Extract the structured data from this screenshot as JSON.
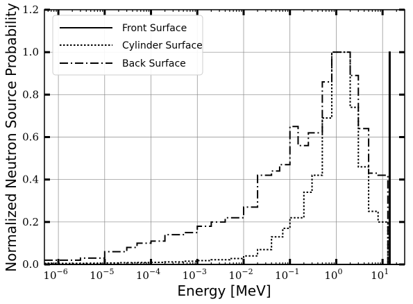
{
  "chart_data": {
    "type": "line",
    "step": true,
    "xscale": "log",
    "title": "",
    "xlabel": "Energy [MeV]",
    "ylabel": "Normalized Neutron Source Probability",
    "xlim": [
      5e-07,
      30
    ],
    "ylim": [
      0,
      1.2
    ],
    "xticks": [
      {
        "value": 1e-06,
        "base": "10",
        "exp": "−6"
      },
      {
        "value": 1e-05,
        "base": "10",
        "exp": "−5"
      },
      {
        "value": 0.0001,
        "base": "10",
        "exp": "−4"
      },
      {
        "value": 0.001,
        "base": "10",
        "exp": "−3"
      },
      {
        "value": 0.01,
        "base": "10",
        "exp": "−2"
      },
      {
        "value": 0.1,
        "base": "10",
        "exp": "−1"
      },
      {
        "value": 1,
        "base": "10",
        "exp": "0"
      },
      {
        "value": 10,
        "base": "10",
        "exp": "1"
      }
    ],
    "yticks": [
      {
        "value": 0.0,
        "label": "0.0"
      },
      {
        "value": 0.2,
        "label": "0.2"
      },
      {
        "value": 0.4,
        "label": "0.4"
      },
      {
        "value": 0.6,
        "label": "0.6"
      },
      {
        "value": 0.8,
        "label": "0.8"
      },
      {
        "value": 1.0,
        "label": "1.0"
      },
      {
        "value": 1.2,
        "label": "1.2"
      }
    ],
    "grid": true,
    "legend_position": "top-left",
    "series": [
      {
        "name": "Front Surface",
        "style": "solid",
        "x": [
          5e-07,
          14,
          14,
          14.5,
          14.5,
          30
        ],
        "y": [
          0,
          0,
          1.0,
          1.0,
          0,
          0
        ]
      },
      {
        "name": "Cylinder Surface",
        "style": "dotted",
        "x": [
          5e-07,
          1e-06,
          2e-06,
          4e-06,
          1e-05,
          2e-05,
          5e-05,
          0.0001,
          0.0002,
          0.0005,
          0.001,
          0.002,
          0.005,
          0.01,
          0.02,
          0.04,
          0.07,
          0.1,
          0.2,
          0.3,
          0.5,
          0.8,
          1,
          2,
          3,
          5,
          8,
          13
        ],
        "y": [
          0.005,
          0.005,
          0.005,
          0.005,
          0.007,
          0.008,
          0.009,
          0.01,
          0.012,
          0.015,
          0.018,
          0.022,
          0.028,
          0.04,
          0.07,
          0.13,
          0.17,
          0.22,
          0.34,
          0.42,
          0.69,
          1.0,
          1.0,
          0.74,
          0.46,
          0.25,
          0.2,
          0.0
        ]
      },
      {
        "name": "Back Surface",
        "style": "dashdot",
        "x": [
          5e-07,
          1e-06,
          3e-06,
          1e-05,
          3e-05,
          5e-05,
          0.0001,
          0.0002,
          0.0005,
          0.001,
          0.002,
          0.004,
          0.01,
          0.02,
          0.04,
          0.06,
          0.1,
          0.15,
          0.25,
          0.5,
          0.8,
          1,
          2,
          3,
          5,
          8,
          13
        ],
        "y": [
          0.02,
          0.02,
          0.03,
          0.06,
          0.08,
          0.1,
          0.11,
          0.14,
          0.15,
          0.18,
          0.2,
          0.22,
          0.27,
          0.42,
          0.44,
          0.47,
          0.65,
          0.56,
          0.62,
          0.86,
          1.0,
          1.0,
          0.89,
          0.64,
          0.43,
          0.42,
          0.0
        ]
      }
    ]
  }
}
